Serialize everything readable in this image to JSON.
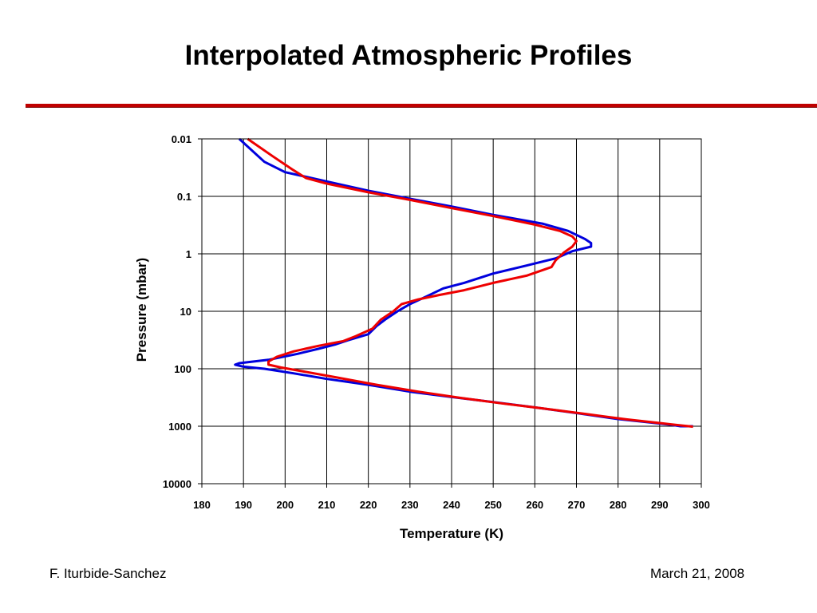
{
  "slide": {
    "title": "Interpolated Atmospheric Profiles",
    "author": "F. Iturbide-Sanchez",
    "date": "March 21, 2008",
    "rule_color": "#c00000"
  },
  "chart_data": {
    "type": "line",
    "xlabel": "Temperature (K)",
    "ylabel": "Pressure (mbar)",
    "xlim": [
      180,
      300
    ],
    "x_ticks": [
      180,
      190,
      200,
      210,
      220,
      230,
      240,
      250,
      260,
      270,
      280,
      290,
      300
    ],
    "ylim": [
      0.01,
      10000
    ],
    "y_scale": "log",
    "y_inverted": true,
    "y_ticks": [
      0.01,
      0.1,
      1,
      10,
      100,
      1000,
      10000
    ],
    "y_tick_labels": [
      "0.01",
      "0.1",
      "1",
      "10",
      "100",
      "1000",
      "10000"
    ],
    "grid": true,
    "legend": false,
    "series": [
      {
        "color": "#0000dd",
        "points": [
          [
            189,
            0.01
          ],
          [
            195,
            0.025
          ],
          [
            200,
            0.038
          ],
          [
            210,
            0.055
          ],
          [
            220,
            0.08
          ],
          [
            230,
            0.11
          ],
          [
            240,
            0.15
          ],
          [
            250,
            0.21
          ],
          [
            262,
            0.3
          ],
          [
            268,
            0.4
          ],
          [
            272,
            0.55
          ],
          [
            273.5,
            0.65
          ],
          [
            273.5,
            0.75
          ],
          [
            269,
            0.9
          ],
          [
            265,
            1.2
          ],
          [
            258,
            1.6
          ],
          [
            250,
            2.2
          ],
          [
            243,
            3.2
          ],
          [
            238,
            4.0
          ],
          [
            234,
            5.5
          ],
          [
            230,
            7.5
          ],
          [
            227,
            10
          ],
          [
            224,
            14
          ],
          [
            222,
            18
          ],
          [
            220,
            25
          ],
          [
            215,
            32
          ],
          [
            212,
            38
          ],
          [
            208,
            45
          ],
          [
            203,
            55
          ],
          [
            196,
            70
          ],
          [
            189,
            80
          ],
          [
            188,
            85
          ],
          [
            190,
            92
          ],
          [
            195,
            100
          ],
          [
            202,
            120
          ],
          [
            210,
            150
          ],
          [
            220,
            190
          ],
          [
            230,
            250
          ],
          [
            240,
            310
          ],
          [
            250,
            380
          ],
          [
            260,
            470
          ],
          [
            270,
            590
          ],
          [
            280,
            750
          ],
          [
            287,
            850
          ],
          [
            293,
            950
          ],
          [
            295,
            1000
          ],
          [
            298,
            1000
          ]
        ]
      },
      {
        "color": "#ee0000",
        "points": [
          [
            191,
            0.01
          ],
          [
            197,
            0.02
          ],
          [
            202,
            0.035
          ],
          [
            205,
            0.048
          ],
          [
            210,
            0.06
          ],
          [
            220,
            0.085
          ],
          [
            230,
            0.115
          ],
          [
            240,
            0.16
          ],
          [
            250,
            0.22
          ],
          [
            260,
            0.31
          ],
          [
            266,
            0.4
          ],
          [
            269,
            0.5
          ],
          [
            270,
            0.6
          ],
          [
            269,
            0.75
          ],
          [
            267,
            0.95
          ],
          [
            265,
            1.3
          ],
          [
            264,
            1.7
          ],
          [
            258,
            2.4
          ],
          [
            250,
            3.2
          ],
          [
            243,
            4.3
          ],
          [
            237,
            5.2
          ],
          [
            232,
            6.2
          ],
          [
            228,
            7.5
          ],
          [
            226,
            10
          ],
          [
            223,
            14
          ],
          [
            221,
            20
          ],
          [
            217,
            27
          ],
          [
            214,
            33
          ],
          [
            208,
            40
          ],
          [
            202,
            50
          ],
          [
            198,
            62
          ],
          [
            196,
            75
          ],
          [
            196,
            85
          ],
          [
            199,
            95
          ],
          [
            204,
            110
          ],
          [
            212,
            140
          ],
          [
            222,
            190
          ],
          [
            232,
            250
          ],
          [
            242,
            320
          ],
          [
            252,
            400
          ],
          [
            262,
            490
          ],
          [
            272,
            610
          ],
          [
            282,
            760
          ],
          [
            290,
            880
          ],
          [
            294,
            950
          ],
          [
            297,
            1000
          ],
          [
            298,
            1020
          ]
        ]
      }
    ]
  }
}
